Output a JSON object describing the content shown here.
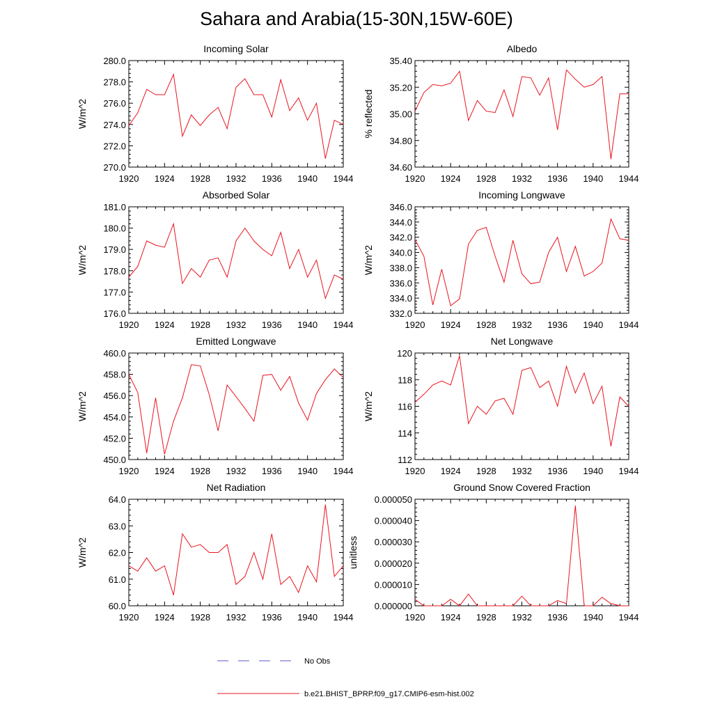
{
  "title": "Sahara and Arabia(15-30N,15W-60E)",
  "legend": [
    {
      "label": "No Obs",
      "color": "#5a5ac8",
      "style": "dashed"
    },
    {
      "label": "b.e21.BHIST_BPRP.f09_g17.CMIP6-esm-hist.002",
      "color": "#e8141e",
      "style": "solid"
    }
  ],
  "chart_data": [
    {
      "type": "line",
      "title": "Incoming Solar",
      "ylabel": "W/m^2",
      "xlim": [
        1920,
        1944
      ],
      "ylim": [
        270,
        280
      ],
      "xticks": [
        1920,
        1924,
        1928,
        1932,
        1936,
        1940,
        1944
      ],
      "yticks": [
        "270.0",
        "272.0",
        "274.0",
        "276.0",
        "278.0",
        "280.0"
      ],
      "x": [
        1920,
        1921,
        1922,
        1923,
        1924,
        1925,
        1926,
        1927,
        1928,
        1929,
        1930,
        1931,
        1932,
        1933,
        1934,
        1935,
        1936,
        1937,
        1938,
        1939,
        1940,
        1941,
        1942,
        1943,
        1944
      ],
      "series": [
        {
          "color": "#e8141e",
          "values": [
            273.9,
            275.1,
            277.3,
            276.8,
            276.8,
            278.7,
            272.9,
            274.9,
            273.9,
            274.9,
            275.6,
            273.6,
            277.5,
            278.3,
            276.8,
            276.8,
            274.7,
            278.2,
            275.3,
            276.5,
            274.4,
            276.0,
            270.8,
            274.4,
            274.0
          ]
        }
      ]
    },
    {
      "type": "line",
      "title": "Albedo",
      "ylabel": "% reflected",
      "xlim": [
        1920,
        1944
      ],
      "ylim": [
        34.6,
        35.4
      ],
      "xticks": [
        1920,
        1924,
        1928,
        1932,
        1936,
        1940,
        1944
      ],
      "yticks": [
        "34.60",
        "34.80",
        "35.00",
        "35.20",
        "35.40"
      ],
      "x": [
        1920,
        1921,
        1922,
        1923,
        1924,
        1925,
        1926,
        1927,
        1928,
        1929,
        1930,
        1931,
        1932,
        1933,
        1934,
        1935,
        1936,
        1937,
        1938,
        1939,
        1940,
        1941,
        1942,
        1943,
        1944
      ],
      "series": [
        {
          "color": "#e8141e",
          "values": [
            35.02,
            35.16,
            35.22,
            35.21,
            35.23,
            35.32,
            34.95,
            35.1,
            35.02,
            35.01,
            35.18,
            34.98,
            35.28,
            35.27,
            35.14,
            35.27,
            34.88,
            35.33,
            35.26,
            35.2,
            35.22,
            35.28,
            34.66,
            35.15,
            35.15
          ]
        }
      ]
    },
    {
      "type": "line",
      "title": "Absorbed Solar",
      "ylabel": "W/m^2",
      "xlim": [
        1920,
        1944
      ],
      "ylim": [
        176,
        181
      ],
      "xticks": [
        1920,
        1924,
        1928,
        1932,
        1936,
        1940,
        1944
      ],
      "yticks": [
        "176.0",
        "177.0",
        "178.0",
        "179.0",
        "180.0",
        "181.0"
      ],
      "x": [
        1920,
        1921,
        1922,
        1923,
        1924,
        1925,
        1926,
        1927,
        1928,
        1929,
        1930,
        1931,
        1932,
        1933,
        1934,
        1935,
        1936,
        1937,
        1938,
        1939,
        1940,
        1941,
        1942,
        1943,
        1944
      ],
      "series": [
        {
          "color": "#e8141e",
          "values": [
            177.7,
            178.2,
            179.4,
            179.2,
            179.1,
            180.2,
            177.4,
            178.1,
            177.7,
            178.5,
            178.6,
            177.7,
            179.4,
            180.0,
            179.4,
            179.0,
            178.7,
            179.8,
            178.1,
            179.0,
            177.7,
            178.5,
            176.7,
            177.8,
            177.6
          ]
        }
      ]
    },
    {
      "type": "line",
      "title": "Incoming Longwave",
      "ylabel": "W/m^2",
      "xlim": [
        1920,
        1944
      ],
      "ylim": [
        332,
        346
      ],
      "xticks": [
        1920,
        1924,
        1928,
        1932,
        1936,
        1940,
        1944
      ],
      "yticks": [
        "332.0",
        "334.0",
        "336.0",
        "338.0",
        "340.0",
        "342.0",
        "344.0",
        "346.0"
      ],
      "x": [
        1920,
        1921,
        1922,
        1923,
        1924,
        1925,
        1926,
        1927,
        1928,
        1929,
        1930,
        1931,
        1932,
        1933,
        1934,
        1935,
        1936,
        1937,
        1938,
        1939,
        1940,
        1941,
        1942,
        1943,
        1944
      ],
      "series": [
        {
          "color": "#e8141e",
          "values": [
            341.7,
            339.5,
            333.1,
            337.8,
            333.0,
            333.9,
            341.1,
            342.9,
            343.3,
            339.5,
            336.1,
            341.6,
            337.2,
            335.9,
            336.1,
            340.0,
            342.0,
            337.5,
            340.8,
            336.9,
            337.5,
            338.6,
            344.4,
            341.8,
            341.6
          ]
        }
      ]
    },
    {
      "type": "line",
      "title": "Emitted Longwave",
      "ylabel": "W/m^2",
      "xlim": [
        1920,
        1944
      ],
      "ylim": [
        450,
        460
      ],
      "xticks": [
        1920,
        1924,
        1928,
        1932,
        1936,
        1940,
        1944
      ],
      "yticks": [
        "450.0",
        "452.0",
        "454.0",
        "456.0",
        "458.0",
        "460.0"
      ],
      "x": [
        1920,
        1921,
        1922,
        1923,
        1924,
        1925,
        1926,
        1927,
        1928,
        1929,
        1930,
        1931,
        1932,
        1933,
        1934,
        1935,
        1936,
        1937,
        1938,
        1939,
        1940,
        1941,
        1942,
        1943,
        1944
      ],
      "series": [
        {
          "color": "#e8141e",
          "values": [
            458.0,
            456.3,
            450.6,
            455.8,
            450.5,
            453.6,
            455.8,
            458.9,
            458.8,
            456.1,
            452.7,
            457.0,
            455.9,
            454.8,
            453.6,
            457.9,
            458.0,
            456.5,
            457.8,
            455.3,
            453.7,
            456.2,
            457.5,
            458.5,
            457.7
          ]
        }
      ]
    },
    {
      "type": "line",
      "title": "Net Longwave",
      "ylabel": "W/m^2",
      "xlim": [
        1920,
        1944
      ],
      "ylim": [
        112,
        120
      ],
      "xticks": [
        1920,
        1924,
        1928,
        1932,
        1936,
        1940,
        1944
      ],
      "yticks": [
        "112",
        "114",
        "116",
        "118",
        "120"
      ],
      "x": [
        1920,
        1921,
        1922,
        1923,
        1924,
        1925,
        1926,
        1927,
        1928,
        1929,
        1930,
        1931,
        1932,
        1933,
        1934,
        1935,
        1936,
        1937,
        1938,
        1939,
        1940,
        1941,
        1942,
        1943,
        1944
      ],
      "series": [
        {
          "color": "#e8141e",
          "values": [
            116.3,
            116.9,
            117.6,
            117.9,
            117.6,
            119.8,
            114.7,
            116.0,
            115.4,
            116.4,
            116.6,
            115.4,
            118.7,
            118.9,
            117.4,
            117.9,
            116.0,
            119.0,
            117.0,
            118.5,
            116.2,
            117.5,
            113.0,
            116.7,
            116.0
          ]
        }
      ]
    },
    {
      "type": "line",
      "title": "Net Radiation",
      "ylabel": "W/m^2",
      "xlim": [
        1920,
        1944
      ],
      "ylim": [
        60,
        64
      ],
      "xticks": [
        1920,
        1924,
        1928,
        1932,
        1936,
        1940,
        1944
      ],
      "yticks": [
        "60.0",
        "61.0",
        "62.0",
        "63.0",
        "64.0"
      ],
      "x": [
        1920,
        1921,
        1922,
        1923,
        1924,
        1925,
        1926,
        1927,
        1928,
        1929,
        1930,
        1931,
        1932,
        1933,
        1934,
        1935,
        1936,
        1937,
        1938,
        1939,
        1940,
        1941,
        1942,
        1943,
        1944
      ],
      "series": [
        {
          "color": "#e8141e",
          "values": [
            61.5,
            61.3,
            61.8,
            61.3,
            61.5,
            60.4,
            62.7,
            62.2,
            62.3,
            62.0,
            62.0,
            62.3,
            60.8,
            61.1,
            62.0,
            61.0,
            62.7,
            60.8,
            61.1,
            60.5,
            61.5,
            60.9,
            63.8,
            61.1,
            61.5
          ]
        }
      ]
    },
    {
      "type": "line",
      "title": "Ground Snow Covered Fraction",
      "ylabel": "unitless",
      "xlim": [
        1920,
        1944
      ],
      "ylim": [
        0,
        5e-05
      ],
      "xticks": [
        1920,
        1924,
        1928,
        1932,
        1936,
        1940,
        1944
      ],
      "yticks": [
        "0.000000",
        "0.000010",
        "0.000020",
        "0.000030",
        "0.000040",
        "0.000050"
      ],
      "x": [
        1920,
        1921,
        1922,
        1923,
        1924,
        1925,
        1926,
        1927,
        1928,
        1929,
        1930,
        1931,
        1932,
        1933,
        1934,
        1935,
        1936,
        1937,
        1938,
        1939,
        1940,
        1941,
        1942,
        1943,
        1944
      ],
      "series": [
        {
          "color": "#e8141e",
          "values": [
            3e-06,
            0,
            0,
            0,
            3e-06,
            0,
            5.5e-06,
            0,
            0,
            0,
            0,
            0,
            4.5e-06,
            0,
            0,
            0,
            2.5e-06,
            1e-06,
            4.7e-05,
            0,
            0,
            4e-06,
            1e-06,
            0,
            0
          ]
        }
      ]
    }
  ]
}
